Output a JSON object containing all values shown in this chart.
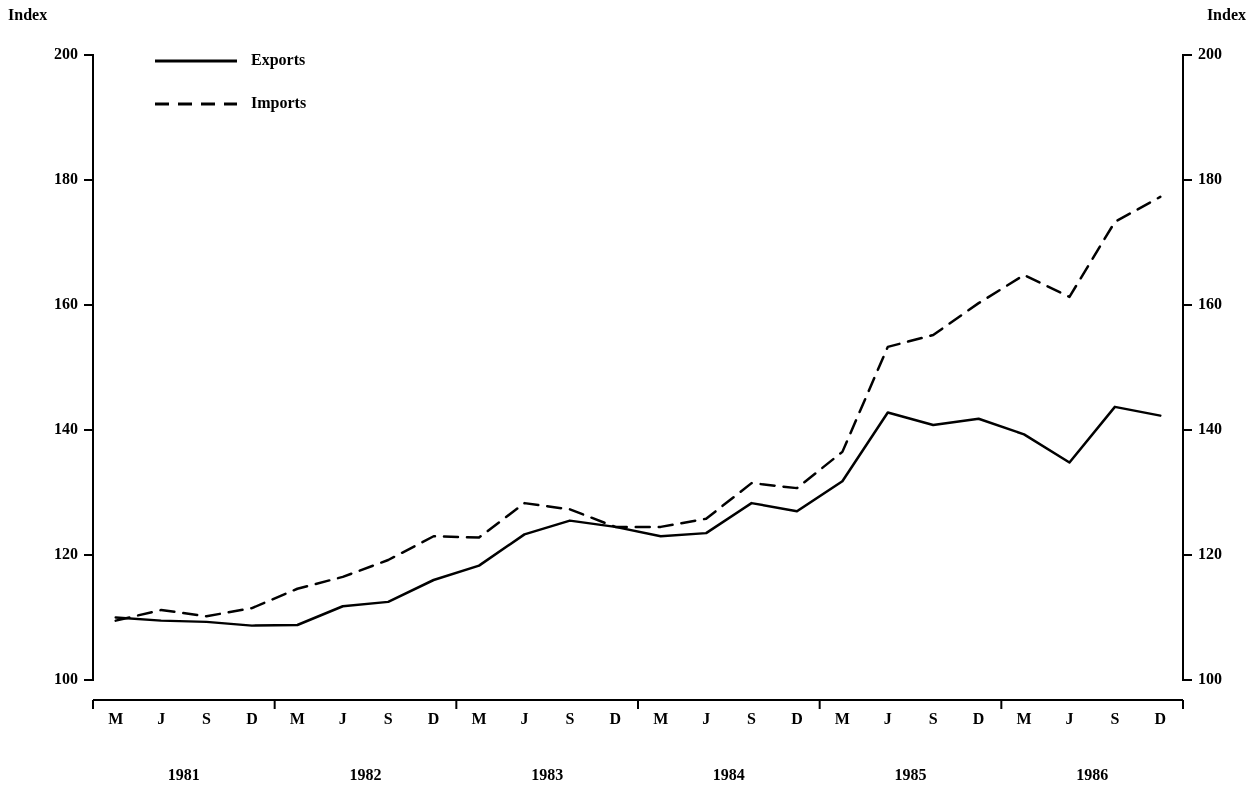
{
  "chart_data": {
    "type": "line",
    "categories": [
      "M",
      "J",
      "S",
      "D",
      "M",
      "J",
      "S",
      "D",
      "M",
      "J",
      "S",
      "D",
      "M",
      "J",
      "S",
      "D",
      "M",
      "J",
      "S",
      "D",
      "M",
      "J",
      "S",
      "D"
    ],
    "series": [
      {
        "name": "Exports",
        "color": "#000000",
        "line_style": "solid",
        "values": [
          110,
          109.5,
          109.3,
          108.7,
          108.8,
          111.8,
          112.5,
          116,
          118.3,
          123.3,
          125.5,
          124.5,
          123,
          123.5,
          128.3,
          127,
          131.8,
          142.8,
          140.8,
          141.8,
          139.3,
          134.8,
          143.7,
          142.3
        ]
      },
      {
        "name": "Imports",
        "color": "#000000",
        "line_style": "dashed",
        "values": [
          109.5,
          111.2,
          110.2,
          111.5,
          114.6,
          116.5,
          119.2,
          123,
          122.8,
          128.3,
          127.3,
          124.5,
          124.5,
          125.8,
          131.5,
          130.7,
          136.5,
          153.3,
          155.2,
          160.3,
          164.8,
          161.3,
          173.3,
          177.3
        ]
      }
    ],
    "ylabel": "Index",
    "y2label": "Index",
    "ylim": [
      100,
      200
    ],
    "yticks": [
      100,
      120,
      140,
      160,
      180,
      200
    ],
    "y2lim": [
      100,
      200
    ],
    "y2ticks": [
      100,
      120,
      140,
      160,
      180,
      200
    ],
    "annotations": [
      "1981",
      "1982",
      "1983",
      "1984",
      "1985",
      "1986"
    ],
    "legend": "top left",
    "grid": false,
    "marker": "none"
  }
}
